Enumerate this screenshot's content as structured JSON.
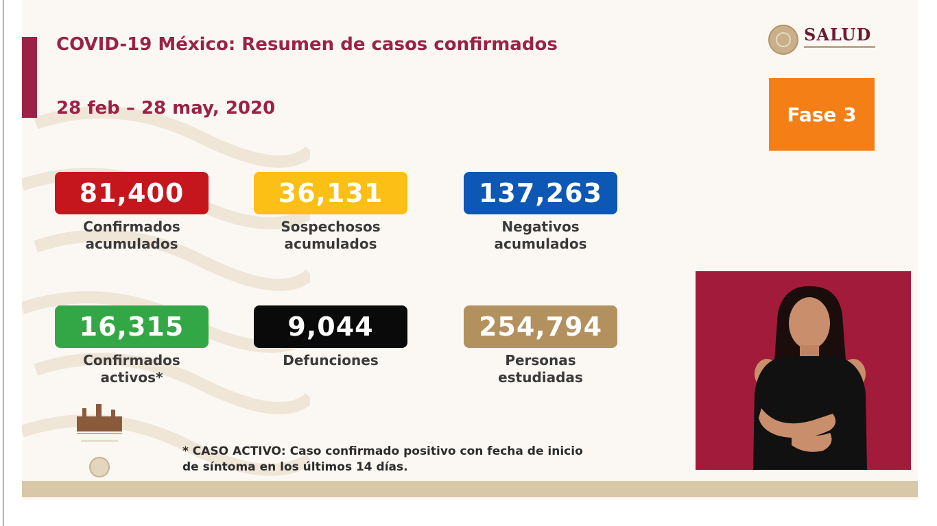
{
  "header": {
    "title": "COVID-19 México: Resumen de casos confirmados",
    "date_range": "28 feb – 28 may, 2020"
  },
  "logo": {
    "name": "SALUD"
  },
  "phase": {
    "label": "Fase 3"
  },
  "stats": [
    {
      "value": "81,400",
      "label_line1": "Confirmados",
      "label_line2": "acumulados",
      "color": "#c4161c"
    },
    {
      "value": "36,131",
      "label_line1": "Sospechosos",
      "label_line2": "acumulados",
      "color": "#fbbf15"
    },
    {
      "value": "137,263",
      "label_line1": "Negativos",
      "label_line2": "acumulados",
      "color": "#0d57b5"
    },
    {
      "value": "16,315",
      "label_line1": "Confirmados",
      "label_line2": "activos*",
      "color": "#33a745"
    },
    {
      "value": "9,044",
      "label_line1": "Defunciones",
      "label_line2": "",
      "color": "#0a0a0a"
    },
    {
      "value": "254,794",
      "label_line1": "Personas",
      "label_line2": "estudiadas",
      "color": "#b3915f"
    }
  ],
  "footnote": {
    "line1": "* CASO ACTIVO: Caso confirmado positivo con fecha de inicio",
    "line2": "de síntoma en los últimos 14 días."
  },
  "colors": {
    "accent": "#9b2247",
    "phase": "#f57f17",
    "band": "#d8c8a8",
    "interpreter_bg": "#a31b3a"
  },
  "icons": {
    "logo": "salud-seal-icon",
    "mini_logo": "government-emblem-icon"
  }
}
